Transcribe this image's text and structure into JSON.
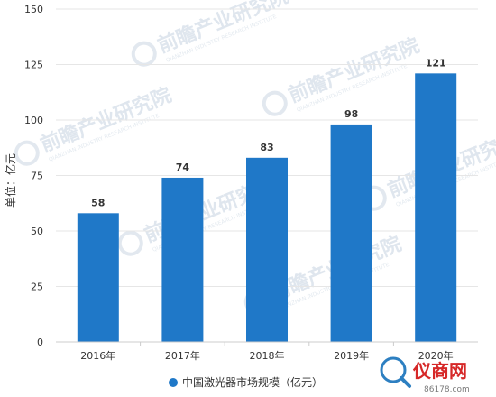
{
  "chart_data": {
    "type": "bar",
    "categories": [
      "2016年",
      "2017年",
      "2018年",
      "2019年",
      "2020年"
    ],
    "series": [
      {
        "name": "中国激光器市场规模（亿元）",
        "values": [
          58,
          74,
          83,
          98,
          121
        ],
        "color": "#1f78c8"
      }
    ],
    "ylabel": "单位：亿元",
    "xlabel": "",
    "ylim": [
      0,
      150
    ],
    "yticks": [
      0,
      25,
      50,
      75,
      100,
      125,
      150
    ],
    "grid": true,
    "data_labels": true,
    "legend_position": "bottom-center"
  },
  "watermark": {
    "text": "前瞻产业研究院",
    "subtext": "QIANZHAN INDUSTRY RESEARCH INSTITUTE"
  },
  "branding": {
    "name": "仪商网",
    "url": "86178.com",
    "color": "#d62828"
  }
}
